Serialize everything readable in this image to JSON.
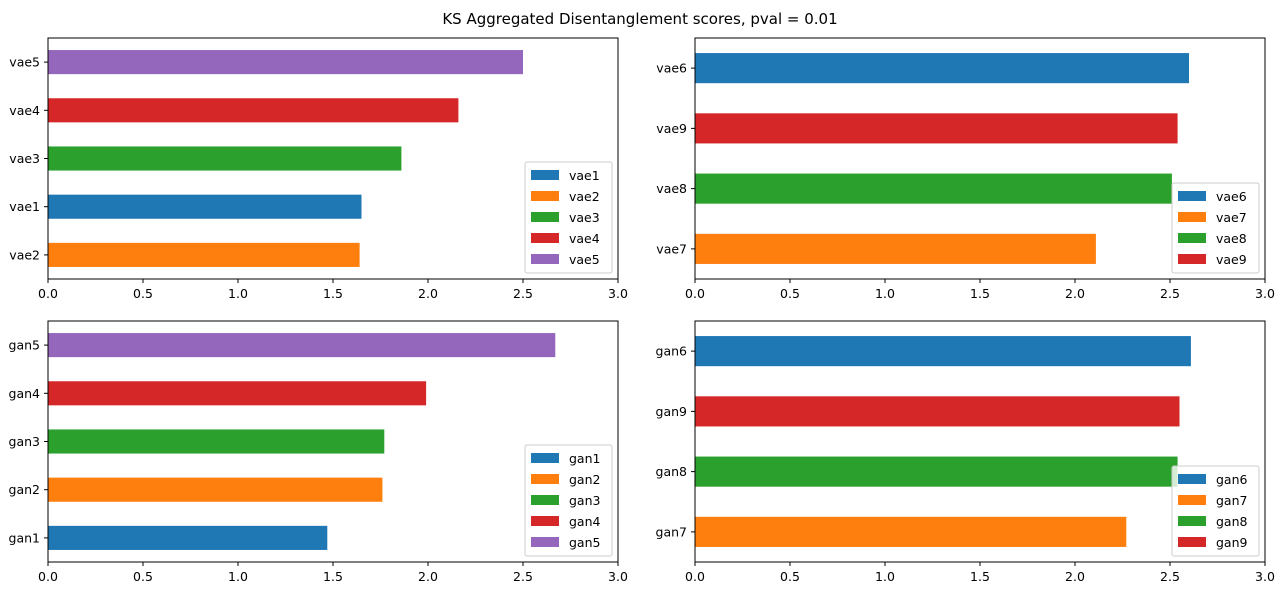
{
  "figure": {
    "title": "KS Aggregated Disentanglement scores, pval = 0.01"
  },
  "chart_data": [
    {
      "type": "bar",
      "orientation": "horizontal",
      "categories": [
        "vae2",
        "vae1",
        "vae3",
        "vae4",
        "vae5"
      ],
      "values": [
        1.64,
        1.65,
        1.86,
        2.16,
        2.5
      ],
      "colors": [
        "#ff7f0e",
        "#1f77b4",
        "#2ca02c",
        "#d62728",
        "#9467bd"
      ],
      "xlim": [
        0,
        3.0
      ],
      "xticks": [
        "0.0",
        "0.5",
        "1.0",
        "1.5",
        "2.0",
        "2.5",
        "3.0"
      ],
      "legend": {
        "placement": "lower-right",
        "entries": [
          {
            "label": "vae1",
            "color": "#1f77b4"
          },
          {
            "label": "vae2",
            "color": "#ff7f0e"
          },
          {
            "label": "vae3",
            "color": "#2ca02c"
          },
          {
            "label": "vae4",
            "color": "#d62728"
          },
          {
            "label": "vae5",
            "color": "#9467bd"
          }
        ]
      }
    },
    {
      "type": "bar",
      "orientation": "horizontal",
      "categories": [
        "vae7",
        "vae8",
        "vae9",
        "vae6"
      ],
      "values": [
        2.11,
        2.51,
        2.54,
        2.6
      ],
      "colors": [
        "#ff7f0e",
        "#2ca02c",
        "#d62728",
        "#1f77b4"
      ],
      "xlim": [
        0,
        3.0
      ],
      "xticks": [
        "0.0",
        "0.5",
        "1.0",
        "1.5",
        "2.0",
        "2.5",
        "3.0"
      ],
      "legend": {
        "placement": "lower-right",
        "entries": [
          {
            "label": "vae6",
            "color": "#1f77b4"
          },
          {
            "label": "vae7",
            "color": "#ff7f0e"
          },
          {
            "label": "vae8",
            "color": "#2ca02c"
          },
          {
            "label": "vae9",
            "color": "#d62728"
          }
        ]
      }
    },
    {
      "type": "bar",
      "orientation": "horizontal",
      "categories": [
        "gan1",
        "gan2",
        "gan3",
        "gan4",
        "gan5"
      ],
      "values": [
        1.47,
        1.76,
        1.77,
        1.99,
        2.67
      ],
      "colors": [
        "#1f77b4",
        "#ff7f0e",
        "#2ca02c",
        "#d62728",
        "#9467bd"
      ],
      "xlim": [
        0,
        3.0
      ],
      "xticks": [
        "0.0",
        "0.5",
        "1.0",
        "1.5",
        "2.0",
        "2.5",
        "3.0"
      ],
      "legend": {
        "placement": "lower-right",
        "entries": [
          {
            "label": "gan1",
            "color": "#1f77b4"
          },
          {
            "label": "gan2",
            "color": "#ff7f0e"
          },
          {
            "label": "gan3",
            "color": "#2ca02c"
          },
          {
            "label": "gan4",
            "color": "#d62728"
          },
          {
            "label": "gan5",
            "color": "#9467bd"
          }
        ]
      }
    },
    {
      "type": "bar",
      "orientation": "horizontal",
      "categories": [
        "gan7",
        "gan8",
        "gan9",
        "gan6"
      ],
      "values": [
        2.27,
        2.54,
        2.55,
        2.61
      ],
      "colors": [
        "#ff7f0e",
        "#2ca02c",
        "#d62728",
        "#1f77b4"
      ],
      "xlim": [
        0,
        3.0
      ],
      "xticks": [
        "0.0",
        "0.5",
        "1.0",
        "1.5",
        "2.0",
        "2.5",
        "3.0"
      ],
      "legend": {
        "placement": "lower-right",
        "entries": [
          {
            "label": "gan6",
            "color": "#1f77b4"
          },
          {
            "label": "gan7",
            "color": "#ff7f0e"
          },
          {
            "label": "gan8",
            "color": "#2ca02c"
          },
          {
            "label": "gan9",
            "color": "#d62728"
          }
        ]
      }
    }
  ]
}
